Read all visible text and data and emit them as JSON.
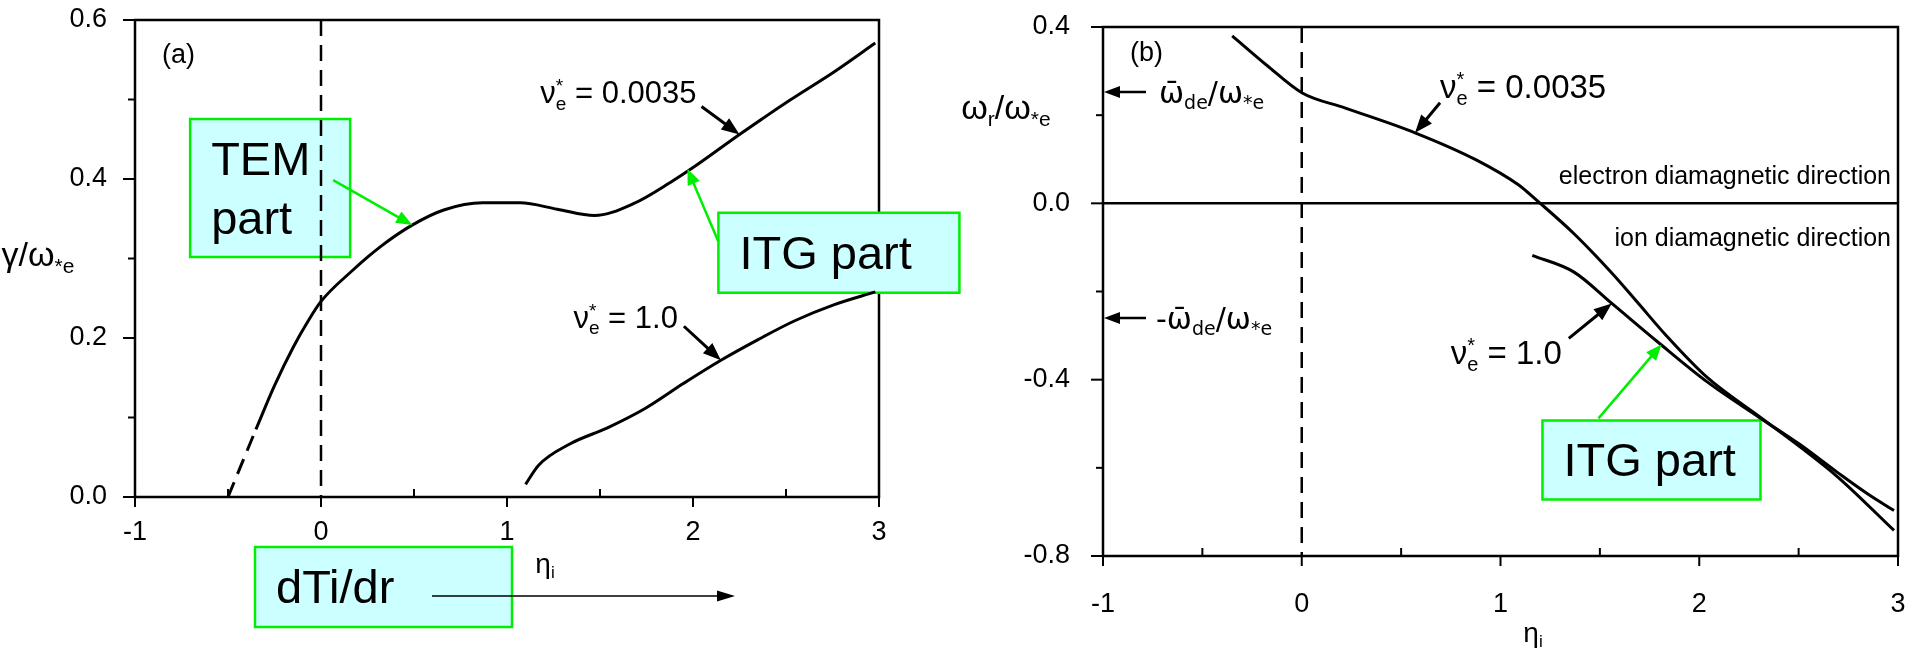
{
  "chart_data": [
    {
      "type": "line",
      "title": "(a)",
      "xlabel": "η$_{i}$",
      "ylabel": "γ/ω$_{*e}$",
      "xlim": [
        -1,
        3
      ],
      "xticks": [
        -1,
        {
          "value": -0.5,
          "label": null
        },
        0,
        {
          "value": 0.5,
          "label": null
        },
        1,
        {
          "value": 1.5,
          "label": null
        },
        2,
        {
          "value": 2.5,
          "label": null
        },
        3
      ],
      "ylim": [
        0,
        0.6
      ],
      "yticks": [
        {
          "value": 0,
          "label": "0.0"
        },
        {
          "value": 0.1,
          "label": null
        },
        0.2,
        {
          "value": 0.3,
          "label": null
        },
        0.4,
        {
          "value": 0.5,
          "label": null
        },
        0.6
      ],
      "series": [
        {
          "color": "#000000",
          "x": [
            -0.35,
            -0.25,
            -0.15,
            -0.07,
            0,
            0.16,
            0.32,
            0.49,
            0.66,
            0.87,
            1.07,
            1.27,
            1.47,
            1.68,
            1.88,
            2.01,
            2.25,
            2.52,
            2.76,
            2.98
          ],
          "values": [
            0.085,
            0.14,
            0.188,
            0.221,
            0.246,
            0.283,
            0.315,
            0.342,
            0.361,
            0.37,
            0.37,
            0.362,
            0.354,
            0.369,
            0.396,
            0.416,
            0.456,
            0.499,
            0.535,
            0.571
          ]
        },
        {
          "color": "#000000",
          "line_style": "dashed",
          "x": [
            -0.5,
            -0.35
          ],
          "values": [
            0,
            0.085
          ]
        },
        {
          "color": "#000000",
          "x": [
            1.1,
            1.17,
            1.34,
            1.54,
            1.74,
            1.95,
            2.15,
            2.35,
            2.55,
            2.76,
            2.98
          ],
          "values": [
            0.016,
            0.04,
            0.067,
            0.087,
            0.111,
            0.143,
            0.172,
            0.198,
            0.222,
            0.242,
            0.258
          ]
        }
      ],
      "ref_lines": [
        {
          "axis": "x",
          "value": 0,
          "line_style": "dashed",
          "color": "#000000"
        }
      ],
      "annotations": [
        {
          "text": "ν$^{*}$$_{e}$ = 0.0035",
          "x": 2.25,
          "y": 0.456
        },
        {
          "text": "ν$^{*}$$_{e}$ = 1.0",
          "x": 2.15,
          "y": 0.172
        },
        {
          "text": "TEM part",
          "x": 0.49,
          "y": 0.342
        },
        {
          "text": "ITG part",
          "x": 1.97,
          "y": 0.413
        },
        "dTi/dr"
      ],
      "grid": false,
      "legend": false,
      "marker": "none"
    },
    {
      "type": "line",
      "title": "(b)",
      "xlabel": "η$_{i}$",
      "ylabel": "ω$_{r}$/ω$_{*e}$",
      "xlim": [
        -1,
        3
      ],
      "xticks": [
        -1,
        {
          "value": -0.5,
          "label": null
        },
        0,
        {
          "value": 0.5,
          "label": null
        },
        1,
        {
          "value": 1.5,
          "label": null
        },
        2,
        {
          "value": 2.5,
          "label": null
        },
        3
      ],
      "ylim": [
        -0.8,
        0.4
      ],
      "yticks": [
        -0.8,
        {
          "value": -0.6,
          "label": null
        },
        -0.4,
        {
          "value": -0.2,
          "label": null
        },
        {
          "value": 0,
          "label": "0.0"
        },
        {
          "value": 0.2,
          "label": null
        },
        0.4
      ],
      "series": [
        {
          "color": "#000000",
          "x": [
            -0.35,
            -0.17,
            0,
            0.22,
            0.57,
            0.88,
            1.09,
            1.2,
            1.37,
            1.56,
            1.69,
            1.83,
            2.04,
            2.3,
            2.5,
            2.7,
            2.98
          ],
          "values": [
            0.38,
            0.311,
            0.251,
            0.216,
            0.16,
            0.098,
            0.042,
            0,
            -0.069,
            -0.158,
            -0.225,
            -0.298,
            -0.395,
            -0.483,
            -0.55,
            -0.622,
            -0.742
          ]
        },
        {
          "color": "#000000",
          "x": [
            1.16,
            1.37,
            1.56,
            1.79,
            2.04,
            2.3,
            2.5,
            2.7,
            2.85,
            2.98
          ],
          "values": [
            -0.118,
            -0.156,
            -0.227,
            -0.314,
            -0.405,
            -0.485,
            -0.545,
            -0.612,
            -0.66,
            -0.697
          ]
        }
      ],
      "ref_lines": [
        {
          "axis": "x",
          "value": 0,
          "line_style": "dashed",
          "color": "#000000"
        },
        {
          "axis": "y",
          "value": 0,
          "color": "#000000"
        }
      ],
      "annotations": [
        {
          "text": "ν$^{*}$$_{e}$ = 0.0035",
          "x": 0.57,
          "y": 0.16
        },
        {
          "text": "ν$^{*}$$_{e}$ = 1.0",
          "x": 1.56,
          "y": -0.227
        },
        "ω̄$_{de}$/ω$_{*e}$",
        "-ω̄$_{de}$/ω$_{*e}$",
        "electron diamagnetic direction",
        "ion diamagnetic direction",
        {
          "text": "ITG part",
          "x": 1.81,
          "y": -0.32
        }
      ],
      "grid": false,
      "legend": false,
      "marker": "none"
    }
  ]
}
